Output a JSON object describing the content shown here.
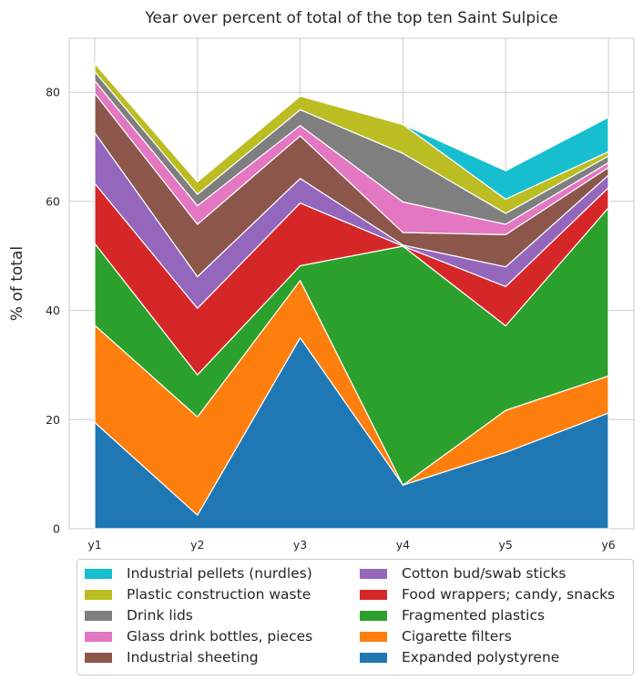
{
  "chart_data": {
    "type": "area",
    "stacked": true,
    "title": "Year over percent of total of the top ten Saint Sulpice",
    "xlabel": "",
    "ylabel": "% of total",
    "categories": [
      "y1",
      "y2",
      "y3",
      "y4",
      "y5",
      "y6"
    ],
    "ylim": [
      0,
      90
    ],
    "yticks": [
      0,
      20,
      40,
      60,
      80
    ],
    "grid": true,
    "legend_position": "bottom",
    "series": [
      {
        "name": "Expanded polystyrene",
        "color": "#1f77b4",
        "values": [
          19.5,
          2.5,
          35.0,
          8.0,
          14.0,
          21.2
        ]
      },
      {
        "name": "Cigarette filters",
        "color": "#ff7f0e",
        "values": [
          17.8,
          18.0,
          10.5,
          0.0,
          7.7,
          6.8
        ]
      },
      {
        "name": "Fragmented plastics",
        "color": "#2ca02c",
        "values": [
          15.0,
          7.7,
          2.7,
          43.8,
          15.5,
          30.8
        ]
      },
      {
        "name": "Food wrappers; candy, snacks",
        "color": "#d62728",
        "values": [
          11.0,
          12.2,
          11.5,
          0.0,
          7.2,
          3.7
        ]
      },
      {
        "name": "Cotton bud/swab sticks",
        "color": "#9467bd",
        "values": [
          9.3,
          5.8,
          4.5,
          0.2,
          3.6,
          2.3
        ]
      },
      {
        "name": "Industrial sheeting",
        "color": "#8c564b",
        "values": [
          7.2,
          9.6,
          7.8,
          2.3,
          5.9,
          1.4
        ]
      },
      {
        "name": "Glass drink bottles, pieces",
        "color": "#e377c2",
        "values": [
          2.3,
          3.4,
          1.9,
          5.6,
          1.9,
          0.9
        ]
      },
      {
        "name": "Drink lids",
        "color": "#7f7f7f",
        "values": [
          1.7,
          2.1,
          2.9,
          8.9,
          2.0,
          1.2
        ]
      },
      {
        "name": "Plastic construction waste",
        "color": "#bcbd22",
        "values": [
          1.5,
          2.3,
          2.5,
          5.3,
          2.6,
          0.8
        ]
      },
      {
        "name": "Industrial pellets (nurdles)",
        "color": "#17becf",
        "values": [
          0.0,
          0.0,
          0.0,
          0.0,
          5.2,
          6.3
        ]
      }
    ],
    "legend_order": [
      "Industrial pellets (nurdles)",
      "Plastic construction waste",
      "Drink lids",
      "Glass drink bottles, pieces",
      "Industrial sheeting",
      "Cotton bud/swab sticks",
      "Food wrappers; candy, snacks",
      "Fragmented plastics",
      "Cigarette filters",
      "Expanded polystyrene"
    ]
  }
}
